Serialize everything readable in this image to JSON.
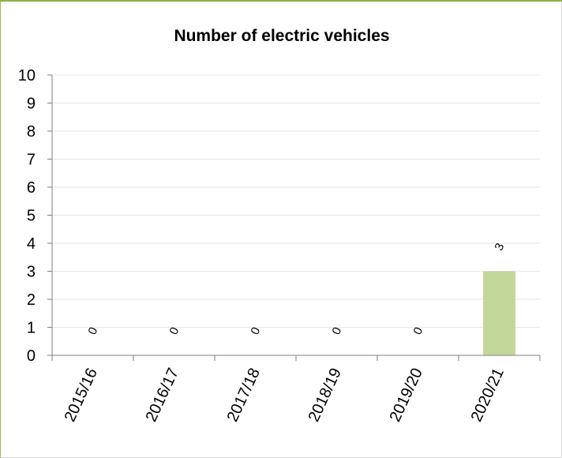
{
  "chart_data": {
    "type": "bar",
    "title": "Number of electric vehicles",
    "xlabel": "",
    "ylabel": "",
    "categories": [
      "2015/16",
      "2016/17",
      "2017/18",
      "2018/19",
      "2019/20",
      "2020/21"
    ],
    "values": [
      0,
      0,
      0,
      0,
      0,
      3
    ],
    "data_labels": [
      "0",
      "0",
      "0",
      "0",
      "0",
      "3"
    ],
    "ylim": [
      0,
      10
    ],
    "yticks": [
      "0",
      "1",
      "2",
      "3",
      "4",
      "5",
      "6",
      "7",
      "8",
      "9",
      "10"
    ],
    "grid": true,
    "legend": "none",
    "bar_color": "#c4d79b",
    "gridline_color": "#e6e6e6",
    "axis_color": "#7f7f7f",
    "frame_color": "#9bbb59"
  }
}
